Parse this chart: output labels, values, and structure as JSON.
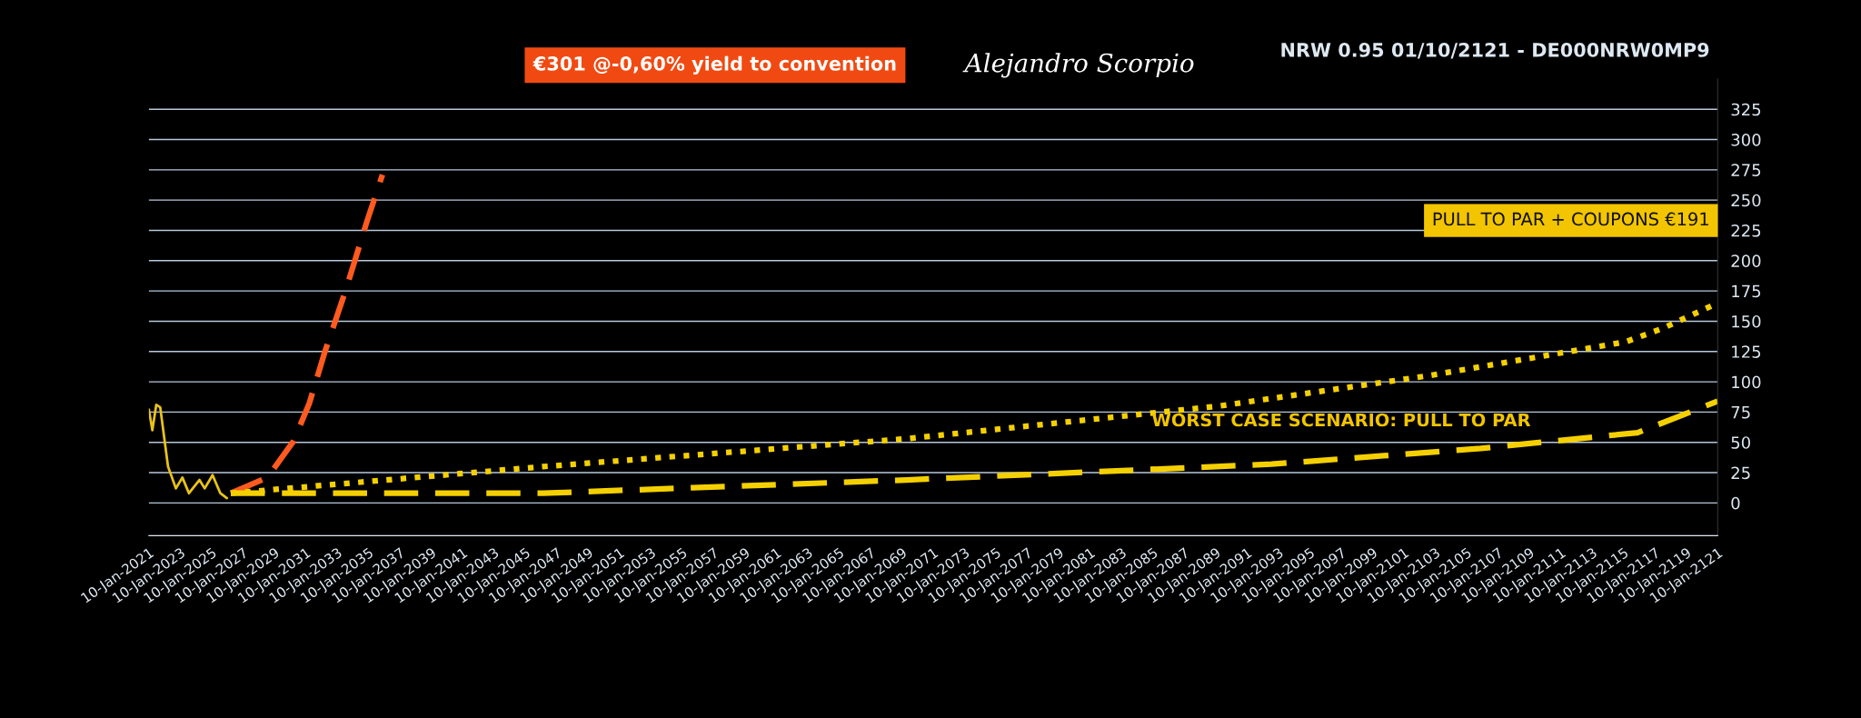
{
  "chart_data": {
    "type": "line",
    "title": "NRW 0.95 01/10/2121 - DE000NRW0MP9",
    "xlim": [
      "2021-01-10",
      "2121-01-10"
    ],
    "ylim": [
      -27,
      350
    ],
    "xticks": [
      {
        "value": "2021-01-10",
        "label": "10-Jan-2021"
      },
      {
        "value": "2023-01-10",
        "label": "10-Jan-2023"
      },
      {
        "value": "2025-01-10",
        "label": "10-Jan-2025"
      },
      {
        "value": "2027-01-10",
        "label": "10-Jan-2027"
      },
      {
        "value": "2029-01-10",
        "label": "10-Jan-2029"
      },
      {
        "value": "2031-01-10",
        "label": "10-Jan-2031"
      },
      {
        "value": "2033-01-10",
        "label": "10-Jan-2033"
      },
      {
        "value": "2035-01-10",
        "label": "10-Jan-2035"
      },
      {
        "value": "2037-01-10",
        "label": "10-Jan-2037"
      },
      {
        "value": "2039-01-10",
        "label": "10-Jan-2039"
      },
      {
        "value": "2041-01-10",
        "label": "10-Jan-2041"
      },
      {
        "value": "2043-01-10",
        "label": "10-Jan-2043"
      },
      {
        "value": "2045-01-10",
        "label": "10-Jan-2045"
      },
      {
        "value": "2047-01-10",
        "label": "10-Jan-2047"
      },
      {
        "value": "2049-01-10",
        "label": "10-Jan-2049"
      },
      {
        "value": "2051-01-10",
        "label": "10-Jan-2051"
      },
      {
        "value": "2053-01-10",
        "label": "10-Jan-2053"
      },
      {
        "value": "2055-01-10",
        "label": "10-Jan-2055"
      },
      {
        "value": "2057-01-10",
        "label": "10-Jan-2057"
      },
      {
        "value": "2059-01-10",
        "label": "10-Jan-2059"
      },
      {
        "value": "2061-01-10",
        "label": "10-Jan-2061"
      },
      {
        "value": "2063-01-10",
        "label": "10-Jan-2063"
      },
      {
        "value": "2065-01-10",
        "label": "10-Jan-2065"
      },
      {
        "value": "2067-01-10",
        "label": "10-Jan-2067"
      },
      {
        "value": "2069-01-10",
        "label": "10-Jan-2069"
      },
      {
        "value": "2071-01-10",
        "label": "10-Jan-2071"
      },
      {
        "value": "2073-01-10",
        "label": "10-Jan-2073"
      },
      {
        "value": "2075-01-10",
        "label": "10-Jan-2075"
      },
      {
        "value": "2077-01-10",
        "label": "10-Jan-2077"
      },
      {
        "value": "2079-01-10",
        "label": "10-Jan-2079"
      },
      {
        "value": "2081-01-10",
        "label": "10-Jan-2081"
      },
      {
        "value": "2083-01-10",
        "label": "10-Jan-2083"
      },
      {
        "value": "2085-01-10",
        "label": "10-Jan-2085"
      },
      {
        "value": "2087-01-10",
        "label": "10-Jan-2087"
      },
      {
        "value": "2089-01-10",
        "label": "10-Jan-2089"
      },
      {
        "value": "2091-01-10",
        "label": "10-Jan-2091"
      },
      {
        "value": "2093-01-10",
        "label": "10-Jan-2093"
      },
      {
        "value": "2095-01-10",
        "label": "10-Jan-2095"
      },
      {
        "value": "2097-01-10",
        "label": "10-Jan-2097"
      },
      {
        "value": "2099-01-10",
        "label": "10-Jan-2099"
      },
      {
        "value": "2101-01-10",
        "label": "10-Jan-2101"
      },
      {
        "value": "2103-01-10",
        "label": "10-Jan-2103"
      },
      {
        "value": "2105-01-10",
        "label": "10-Jan-2105"
      },
      {
        "value": "2107-01-10",
        "label": "10-Jan-2107"
      },
      {
        "value": "2109-01-10",
        "label": "10-Jan-2109"
      },
      {
        "value": "2111-01-10",
        "label": "10-Jan-2111"
      },
      {
        "value": "2113-01-10",
        "label": "10-Jan-2113"
      },
      {
        "value": "2115-01-10",
        "label": "10-Jan-2115"
      },
      {
        "value": "2117-01-10",
        "label": "10-Jan-2117"
      },
      {
        "value": "2119-01-10",
        "label": "10-Jan-2119"
      },
      {
        "value": "2121-01-10",
        "label": "10-Jan-2121"
      }
    ],
    "yticks": [
      0,
      25,
      50,
      75,
      100,
      125,
      150,
      175,
      200,
      225,
      250,
      275,
      300,
      325
    ],
    "grid": "y",
    "marker": "none",
    "series": [
      {
        "color": "#e8c21a",
        "line_style": "solid",
        "x": [
          "2021-01-10",
          "2021-04",
          "2021-07",
          "2021-10",
          "2022-04",
          "2022-10",
          "2023-03",
          "2023-08",
          "2024-04",
          "2024-08",
          "2025-02",
          "2025-08",
          "2026-01"
        ],
        "values": [
          77,
          60,
          81,
          79,
          30,
          12,
          21,
          8,
          19,
          12,
          23,
          8,
          4
        ]
      },
      {
        "color": "#ff5a1f",
        "line_style": "dashed",
        "x": [
          "2026-04",
          "2028-08",
          "2030-04",
          "2031-04",
          "2032-04",
          "2033-08",
          "2034-12",
          "2035-12"
        ],
        "values": [
          8,
          21,
          51,
          82,
          125,
          176,
          232,
          271
        ]
      },
      {
        "color": "#f5d000",
        "line_style": "dotted",
        "x": [
          "2026-04",
          "2046-03",
          "2069-05",
          "2089-04",
          "2102-08",
          "2115-03",
          "2117-07",
          "2121-01-10"
        ],
        "values": [
          8,
          30,
          53,
          80,
          105,
          133,
          144,
          165
        ]
      },
      {
        "color": "#f5d000",
        "line_style": "dashed",
        "x": [
          "2026-04",
          "2046-03",
          "2069-05",
          "2092-08",
          "2105-12",
          "2115-12",
          "2121-01-10"
        ],
        "values": [
          8,
          8,
          19,
          32,
          45,
          58,
          84
        ]
      }
    ],
    "annotations": [
      "€301 @-0,60% yield to convention",
      "PULL TO PAR + COUPONS €191",
      "WORST CASE SCENARIO: PULL TO PAR",
      "Alejandro Scorpio"
    ]
  }
}
